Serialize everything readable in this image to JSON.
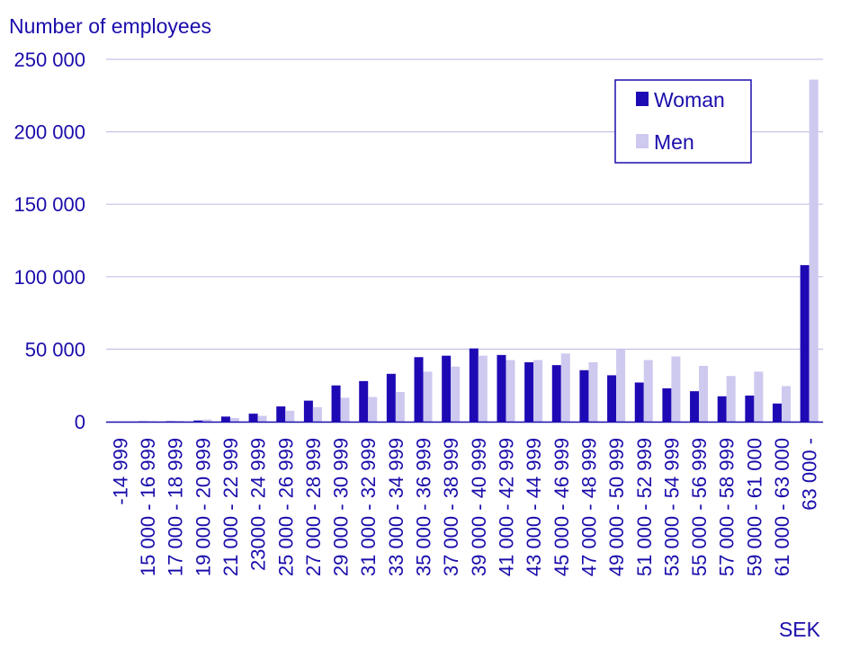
{
  "chart_data": {
    "type": "bar",
    "ylabel": "Number of employees",
    "xlabel": "SEK",
    "ylim": [
      0,
      250000
    ],
    "yticks": [
      0,
      50000,
      100000,
      150000,
      200000,
      250000
    ],
    "ytick_labels": [
      "0",
      "50 000",
      "100 000",
      "150 000",
      "200 000",
      "250 000"
    ],
    "grid": true,
    "legend_position": "top-right",
    "categories": [
      "-14 999",
      "15 000 - 16 999",
      "17 000 - 18 999",
      "19 000 - 20 999",
      "21 000 - 22 999",
      "23000 - 24 999",
      "25 000 - 26 999",
      "27 000 - 28 999",
      "29 000 - 30 999",
      "31 000 - 32 999",
      "33 000 - 34 999",
      "35 000 - 36 999",
      "37 000 - 38 999",
      "39 000 - 40 999",
      "41 000 - 42 999",
      "43 000 - 44 999",
      "45 000 - 46 999",
      "47 000 - 48 999",
      "49 000 - 50 999",
      "51 000 - 52 999",
      "53 000 - 54 999",
      "55 000 - 56 999",
      "57 000 - 58 999",
      "59 000 - 61 000",
      "61 000 - 63 000",
      "63 000 -"
    ],
    "series": [
      {
        "name": "Woman",
        "color": "#1e0ab4",
        "values": [
          0,
          200,
          300,
          800,
          3500,
          5500,
          10500,
          14500,
          25000,
          28000,
          33000,
          44500,
          45500,
          50500,
          46000,
          41000,
          39000,
          35500,
          32000,
          27000,
          23000,
          21000,
          17500,
          18000,
          12500,
          108000
        ]
      },
      {
        "name": "Men",
        "color": "#cdc9ef",
        "values": [
          0,
          300,
          500,
          1500,
          2500,
          4000,
          7500,
          10000,
          16500,
          17000,
          20500,
          34500,
          38000,
          45500,
          42500,
          42500,
          47000,
          41000,
          50000,
          42500,
          45000,
          38500,
          31500,
          34500,
          24500,
          236000
        ]
      }
    ]
  }
}
